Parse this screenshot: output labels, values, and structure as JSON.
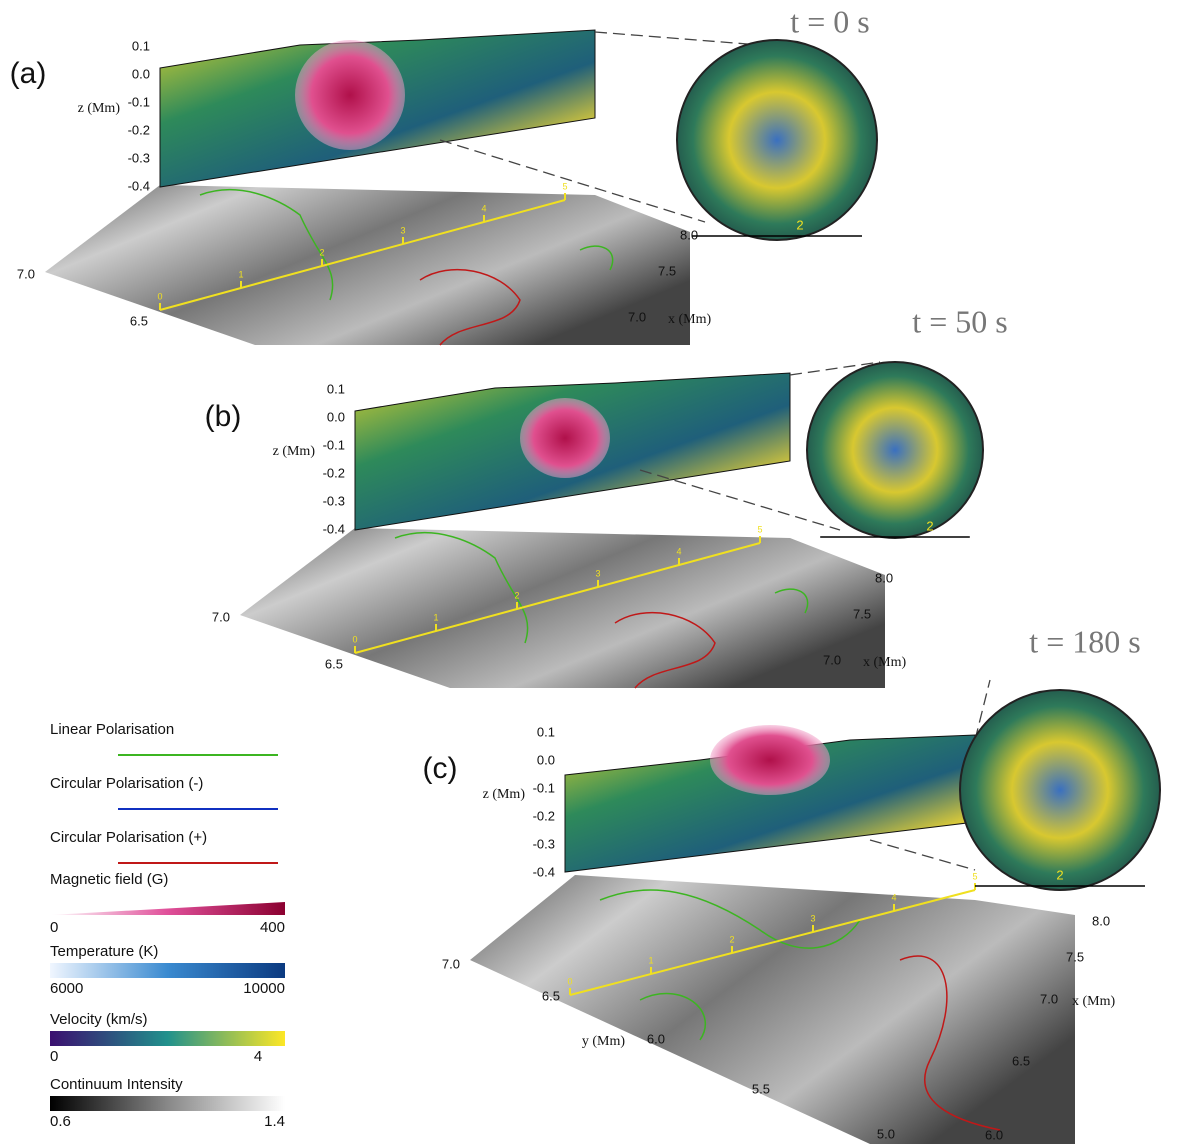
{
  "panels": [
    {
      "label": "(a)",
      "time": "t = 0 s",
      "z_axis_label": "z (Mm)",
      "z_ticks": [
        "0.1",
        "0.0",
        "-0.1",
        "-0.2",
        "-0.3",
        "-0.4"
      ],
      "y_ticks": [
        "7.0",
        "6.5"
      ],
      "x_ticks": [
        "8.0",
        "7.5",
        "7.0"
      ],
      "x_axis_label": "x (Mm)",
      "scale_ticks": [
        "0",
        "1",
        "2",
        "3",
        "4",
        "5"
      ],
      "zoom_tick": "2"
    },
    {
      "label": "(b)",
      "time": "t = 50 s",
      "z_axis_label": "z (Mm)",
      "z_ticks": [
        "0.1",
        "0.0",
        "-0.1",
        "-0.2",
        "-0.3",
        "-0.4"
      ],
      "y_ticks": [
        "7.0",
        "6.5"
      ],
      "x_ticks": [
        "8.0",
        "7.5",
        "7.0"
      ],
      "x_axis_label": "x (Mm)",
      "scale_ticks": [
        "0",
        "1",
        "2",
        "3",
        "4",
        "5"
      ],
      "zoom_tick": "2"
    },
    {
      "label": "(c)",
      "time": "t = 180 s",
      "z_axis_label": "z (Mm)",
      "z_ticks": [
        "0.1",
        "0.0",
        "-0.1",
        "-0.2",
        "-0.3",
        "-0.4"
      ],
      "y_ticks": [
        "7.0",
        "6.5",
        "6.0",
        "5.5",
        "5.0"
      ],
      "x_ticks": [
        "8.0",
        "7.5",
        "7.0",
        "6.5",
        "6.0"
      ],
      "x_axis_label": "x (Mm)",
      "y_axis_label": "y (Mm)",
      "scale_ticks": [
        "0",
        "1",
        "2",
        "3",
        "4",
        "5"
      ],
      "zoom_tick": "2"
    }
  ],
  "legend": {
    "lines": [
      {
        "label": "Linear Polarisation",
        "color": "#3cb521"
      },
      {
        "label": "Circular Polarisation (-)",
        "color": "#1030c0"
      },
      {
        "label": "Circular Polarisation (+)",
        "color": "#c01818"
      }
    ],
    "colorbars": [
      {
        "title": "Magnetic field (G)",
        "min": "0",
        "max": "400",
        "colors": [
          "#ffffff",
          "#e0509a",
          "#8b0030"
        ]
      },
      {
        "title": "Temperature (K)",
        "min": "6000",
        "max": "10000",
        "colors": [
          "#f0f6ff",
          "#3a8ad0",
          "#0b3a80"
        ]
      },
      {
        "title": "Velocity (km/s)",
        "min": "0",
        "max": "4",
        "colors": [
          "#3b0f70",
          "#21918c",
          "#fde725"
        ]
      },
      {
        "title": "Continuum Intensity",
        "min": "0.6",
        "max": "1.4",
        "colors": [
          "#000000",
          "#888888",
          "#ffffff"
        ]
      }
    ]
  }
}
